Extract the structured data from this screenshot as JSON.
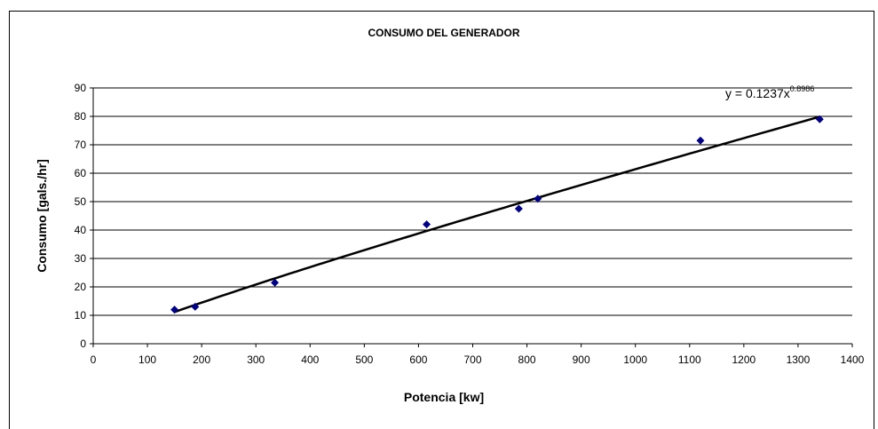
{
  "chart_data": {
    "type": "scatter",
    "title": "CONSUMO DEL GENERADOR",
    "xlabel": "Potencia [kw]",
    "ylabel": "Consumo [gals./hr]",
    "series": [
      {
        "color": "#000080",
        "x": [
          150,
          188,
          335,
          615,
          785,
          820,
          1120,
          1340
        ],
        "values": [
          12,
          13,
          21.5,
          42,
          47.5,
          51,
          71.5,
          79
        ]
      }
    ],
    "trendline": {
      "type": "power",
      "coefficient": 0.1237,
      "exponent": 0.8986,
      "color": "#000000",
      "label": "y = 0.1237x",
      "label_exponent": "0.8986"
    },
    "xlim": [
      0,
      1400
    ],
    "xticks": [
      0,
      100,
      200,
      300,
      400,
      500,
      600,
      700,
      800,
      900,
      1000,
      1100,
      1200,
      1300,
      1400
    ],
    "ylim": [
      0,
      90
    ],
    "yticks": [
      0,
      10,
      20,
      30,
      40,
      50,
      60,
      70,
      80,
      90
    ],
    "grid": true
  }
}
